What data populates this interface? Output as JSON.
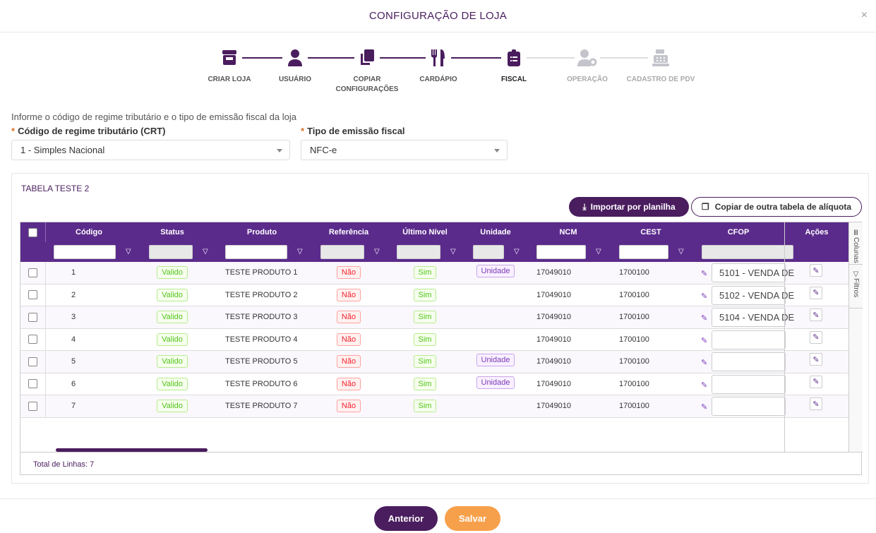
{
  "modal": {
    "title": "CONFIGURAÇÃO DE LOJA",
    "close_icon": "×"
  },
  "steps": [
    {
      "label": "CRIAR LOJA",
      "icon": "store-icon",
      "active": true
    },
    {
      "label": "USUÁRIO",
      "icon": "user-icon",
      "active": true
    },
    {
      "label": "COPIAR CONFIGURAÇÕES",
      "icon": "copy-icon",
      "active": true
    },
    {
      "label": "CARDÁPIO",
      "icon": "utensils-icon",
      "active": true
    },
    {
      "label": "FISCAL",
      "icon": "clipboard-list-icon",
      "active": true,
      "current": true
    },
    {
      "label": "OPERAÇÃO",
      "icon": "user-gear-icon",
      "active": false
    },
    {
      "label": "CADASTRO DE PDV",
      "icon": "cash-register-icon",
      "active": false
    }
  ],
  "form": {
    "intro": "Informe o código de regime tributário e o tipo de emissão fiscal da loja",
    "crt_label": "Código de regime tributário (CRT)",
    "crt_value": "1 - Simples Nacional",
    "emissao_label": "Tipo de emissão fiscal",
    "emissao_value": "NFC-e",
    "required_mark": "*"
  },
  "table": {
    "title": "TABELA TESTE 2",
    "import_label": "Importar por planilha",
    "copy_label": "Copiar de outra tabela de alíquota",
    "columns": [
      "Código",
      "Status",
      "Produto",
      "Referência",
      "Último Nível",
      "Unidade",
      "NCM",
      "CEST",
      "CFOP",
      "Ações"
    ],
    "side_tabs": [
      "Colunas",
      "Filtros"
    ],
    "rows": [
      {
        "codigo": "1",
        "status": "Valido",
        "produto": "TESTE PRODUTO 1",
        "referencia": "Não",
        "ultimo": "Sim",
        "unidade": "Unidade",
        "ncm": "17049010",
        "cest": "1700100",
        "cfop": "5101 - VENDA DE"
      },
      {
        "codigo": "2",
        "status": "Valido",
        "produto": "TESTE PRODUTO 2",
        "referencia": "Não",
        "ultimo": "Sim",
        "unidade": "",
        "ncm": "17049010",
        "cest": "1700100",
        "cfop": "5102 - VENDA DE"
      },
      {
        "codigo": "3",
        "status": "Valido",
        "produto": "TESTE PRODUTO 3",
        "referencia": "Não",
        "ultimo": "Sim",
        "unidade": "",
        "ncm": "17049010",
        "cest": "1700100",
        "cfop": "5104 - VENDA DE"
      },
      {
        "codigo": "4",
        "status": "Valido",
        "produto": "TESTE PRODUTO 4",
        "referencia": "Não",
        "ultimo": "Sim",
        "unidade": "",
        "ncm": "17049010",
        "cest": "1700100",
        "cfop": ""
      },
      {
        "codigo": "5",
        "status": "Valido",
        "produto": "TESTE PRODUTO 5",
        "referencia": "Não",
        "ultimo": "Sim",
        "unidade": "Unidade",
        "ncm": "17049010",
        "cest": "1700100",
        "cfop": ""
      },
      {
        "codigo": "6",
        "status": "Valido",
        "produto": "TESTE PRODUTO 6",
        "referencia": "Não",
        "ultimo": "Sim",
        "unidade": "Unidade",
        "ncm": "17049010",
        "cest": "1700100",
        "cfop": ""
      },
      {
        "codigo": "7",
        "status": "Valido",
        "produto": "TESTE PRODUTO 7",
        "referencia": "Não",
        "ultimo": "Sim",
        "unidade": "",
        "ncm": "17049010",
        "cest": "1700100",
        "cfop": ""
      }
    ],
    "footer": "Total de Linhas: 7"
  },
  "buttons": {
    "prev": "Anterior",
    "save": "Salvar"
  },
  "colors": {
    "primary": "#4a1d5e",
    "header": "#5b2b8c",
    "save": "#f7a04b"
  }
}
